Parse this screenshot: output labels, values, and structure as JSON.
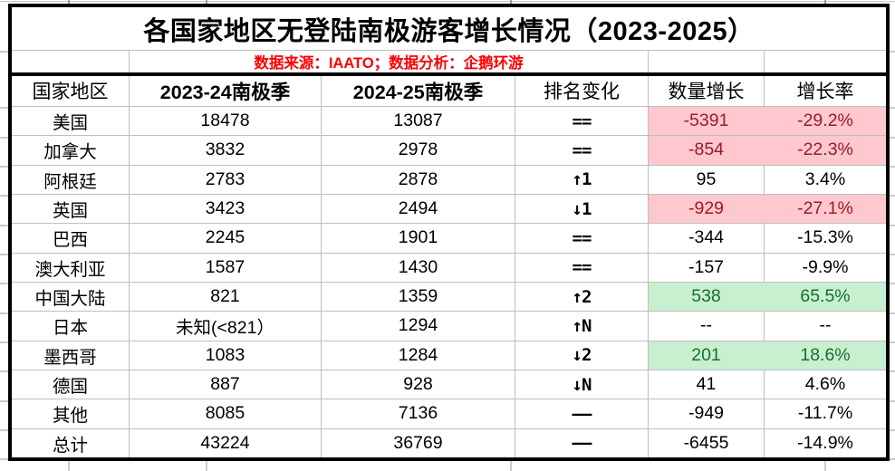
{
  "title": "各国家地区无登陆南极游客增长情况（2023-2025）",
  "subtitle": "数据来源：IAATO；数据分析：企鹅环游",
  "columns": [
    "国家地区",
    "2023-24南极季",
    "2024-25南极季",
    "排名变化",
    "数量增长",
    "增长率"
  ],
  "rows": [
    {
      "country": "美国",
      "s2324": "18478",
      "s2425": "13087",
      "rank": "==",
      "delta": "-5391",
      "rate": "-29.2%",
      "highlight": "bad"
    },
    {
      "country": "加拿大",
      "s2324": "3832",
      "s2425": "2978",
      "rank": "==",
      "delta": "-854",
      "rate": "-22.3%",
      "highlight": "bad"
    },
    {
      "country": "阿根廷",
      "s2324": "2783",
      "s2425": "2878",
      "rank": "↑1",
      "delta": "95",
      "rate": "3.4%",
      "highlight": "none"
    },
    {
      "country": "英国",
      "s2324": "3423",
      "s2425": "2494",
      "rank": "↓1",
      "delta": "-929",
      "rate": "-27.1%",
      "highlight": "bad"
    },
    {
      "country": "巴西",
      "s2324": "2245",
      "s2425": "1901",
      "rank": "==",
      "delta": "-344",
      "rate": "-15.3%",
      "highlight": "none"
    },
    {
      "country": "澳大利亚",
      "s2324": "1587",
      "s2425": "1430",
      "rank": "==",
      "delta": "-157",
      "rate": "-9.9%",
      "highlight": "none"
    },
    {
      "country": "中国大陆",
      "s2324": "821",
      "s2425": "1359",
      "rank": "↑2",
      "delta": "538",
      "rate": "65.5%",
      "highlight": "good"
    },
    {
      "country": "日本",
      "s2324": "未知(<821）",
      "s2425": "1294",
      "rank": "↑N",
      "delta": "--",
      "rate": "--",
      "highlight": "none"
    },
    {
      "country": "墨西哥",
      "s2324": "1083",
      "s2425": "1284",
      "rank": "↓2",
      "delta": "201",
      "rate": "18.6%",
      "highlight": "good"
    },
    {
      "country": "德国",
      "s2324": "887",
      "s2425": "928",
      "rank": "↓N",
      "delta": "41",
      "rate": "4.6%",
      "highlight": "none"
    },
    {
      "country": "其他",
      "s2324": "8085",
      "s2425": "7136",
      "rank": "——",
      "delta": "-949",
      "rate": "-11.7%",
      "highlight": "none"
    },
    {
      "country": "总计",
      "s2324": "43224",
      "s2425": "36769",
      "rank": "——",
      "delta": "-6455",
      "rate": "-14.9%",
      "highlight": "none"
    }
  ],
  "colors": {
    "bad_bg": "#FFC7CE",
    "bad_text": "#9C1B26",
    "good_bg": "#C8EFD0",
    "good_text": "#15702D",
    "subtitle_red": "#FE0000",
    "grid": "#BFBFBF"
  }
}
